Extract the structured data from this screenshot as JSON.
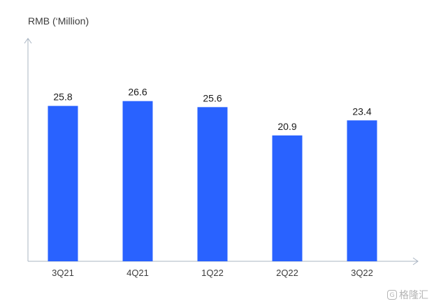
{
  "chart_data": {
    "type": "bar",
    "ylabel": "RMB (‘Million)",
    "categories": [
      "3Q21",
      "4Q21",
      "1Q22",
      "2Q22",
      "3Q22"
    ],
    "values": [
      25.8,
      26.6,
      25.6,
      20.9,
      23.4
    ],
    "value_labels": [
      "25.8",
      "26.6",
      "25.6",
      "20.9",
      "23.4"
    ],
    "bar_color": "#2962ff",
    "axis_color": "#a9b4c2",
    "grid": false,
    "legend": "none"
  },
  "watermark": {
    "icon": "G",
    "text": "格隆汇"
  }
}
